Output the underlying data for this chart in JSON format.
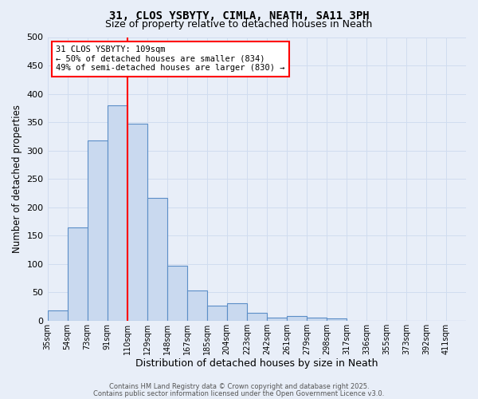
{
  "title": "31, CLOS YSBYTY, CIMLA, NEATH, SA11 3PH",
  "subtitle": "Size of property relative to detached houses in Neath",
  "xlabel": "Distribution of detached houses by size in Neath",
  "ylabel": "Number of detached properties",
  "bar_labels": [
    "35sqm",
    "54sqm",
    "73sqm",
    "91sqm",
    "110sqm",
    "129sqm",
    "148sqm",
    "167sqm",
    "185sqm",
    "204sqm",
    "223sqm",
    "242sqm",
    "261sqm",
    "279sqm",
    "298sqm",
    "317sqm",
    "336sqm",
    "355sqm",
    "373sqm",
    "392sqm",
    "411sqm"
  ],
  "bar_values": [
    18,
    165,
    318,
    380,
    348,
    217,
    97,
    53,
    27,
    30,
    14,
    6,
    8,
    6,
    4,
    0,
    0,
    0,
    0,
    0,
    0
  ],
  "bar_color": "#c9d9ef",
  "bar_edge_color": "#5b8ec7",
  "grid_color": "#d0dcef",
  "background_color": "#e8eef8",
  "vline_color": "red",
  "ylim": [
    0,
    500
  ],
  "yticks": [
    0,
    50,
    100,
    150,
    200,
    250,
    300,
    350,
    400,
    450,
    500
  ],
  "annotation_title": "31 CLOS YSBYTY: 109sqm",
  "annotation_line1": "← 50% of detached houses are smaller (834)",
  "annotation_line2": "49% of semi-detached houses are larger (830) →",
  "footer1": "Contains HM Land Registry data © Crown copyright and database right 2025.",
  "footer2": "Contains public sector information licensed under the Open Government Licence v3.0."
}
